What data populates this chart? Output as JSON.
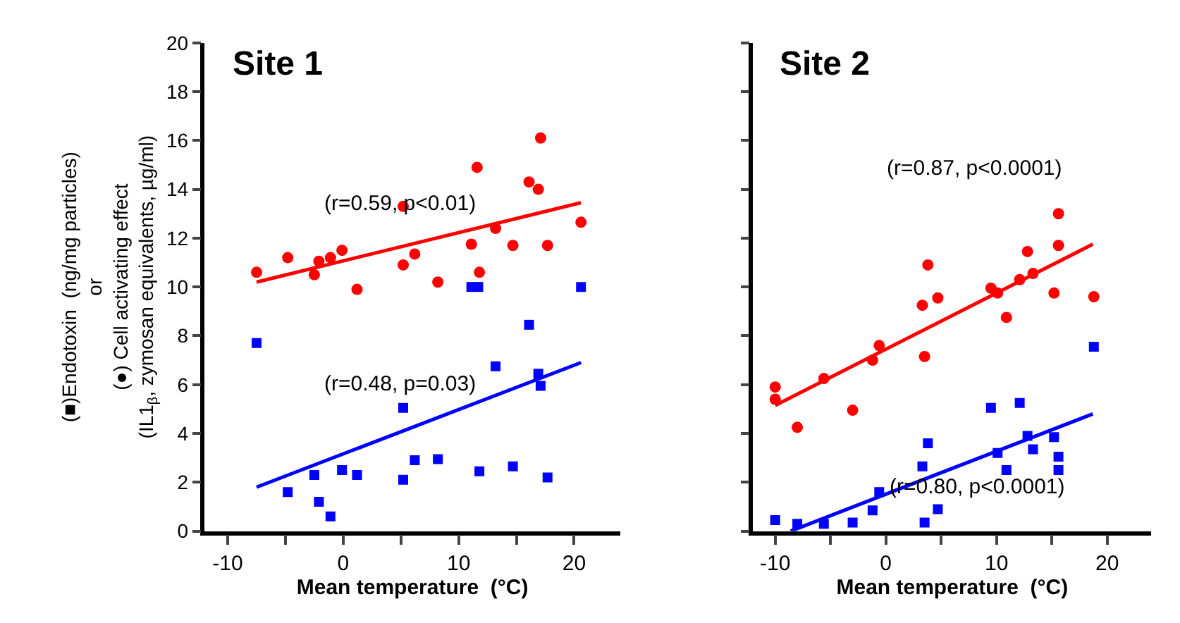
{
  "chart_data": [
    {
      "type": "scatter",
      "title": "Site 1",
      "xlabel": "Mean temperature  (°C)",
      "ylabel": "(■)Endotoxin  (ng/mg particles)\nor\n(●) Cell activating effect\n(IL1$_{β}$, zymosan equivalents, µg/ml)",
      "xlim": [
        -12,
        24
      ],
      "ylim": [
        0,
        20
      ],
      "xticks": [
        -10,
        {
          "value": -5,
          "label": null
        },
        0,
        {
          "value": 5,
          "label": null
        },
        10,
        {
          "value": 15,
          "label": null
        },
        20
      ],
      "yticks": [
        0,
        2,
        4,
        6,
        8,
        10,
        12,
        14,
        16,
        18,
        20
      ],
      "annotations": [
        "(r=0.59, p<0.01)",
        "(r=0.48, p=0.03)"
      ],
      "series": [
        {
          "marker": "circle",
          "color": "#ff0000",
          "x": [
            -7.5,
            -4.8,
            -2.5,
            -2.1,
            -1.1,
            -0.1,
            1.2,
            5.2,
            5.2,
            6.2,
            8.2,
            11.1,
            11.6,
            11.8,
            13.2,
            14.7,
            16.1,
            16.9,
            17.1,
            17.7,
            20.6
          ],
          "values": [
            10.6,
            11.2,
            10.5,
            11.05,
            11.2,
            11.5,
            9.9,
            13.3,
            10.9,
            11.35,
            10.2,
            11.75,
            14.9,
            10.6,
            12.4,
            11.7,
            14.3,
            14.0,
            16.1,
            11.7,
            12.65
          ]
        },
        {
          "marker": "square",
          "color": "#0000ff",
          "x": [
            -7.5,
            -4.8,
            -2.5,
            -2.1,
            -1.1,
            -0.1,
            1.2,
            5.2,
            5.2,
            6.2,
            8.2,
            11.1,
            11.7,
            11.8,
            13.2,
            14.7,
            16.1,
            16.9,
            17.1,
            17.7,
            20.6
          ],
          "values": [
            7.7,
            1.6,
            2.3,
            1.2,
            0.6,
            2.5,
            2.3,
            5.05,
            2.1,
            2.9,
            2.95,
            10.0,
            10.0,
            2.45,
            6.75,
            2.65,
            8.45,
            6.45,
            5.95,
            2.2,
            10.0
          ]
        },
        {
          "type": "line",
          "marker": "none",
          "color": "#ff0000",
          "x": [
            -7.5,
            20.6
          ],
          "values": [
            10.2,
            13.45
          ]
        },
        {
          "type": "line",
          "marker": "none",
          "color": "#0000ff",
          "x": [
            -7.5,
            20.6
          ],
          "values": [
            1.8,
            6.9
          ]
        }
      ]
    },
    {
      "type": "scatter",
      "title": "Site 2",
      "xlabel": "Mean temperature  (°C)",
      "tick_labels": "x",
      "xlim": [
        -12,
        24
      ],
      "ylim": [
        0,
        20
      ],
      "xticks": [
        -10,
        {
          "value": -5,
          "label": null
        },
        0,
        {
          "value": 5,
          "label": null
        },
        10,
        {
          "value": 15,
          "label": null
        },
        20
      ],
      "yticks": [
        0,
        2,
        4,
        6,
        8,
        10,
        12,
        14,
        16,
        18,
        20
      ],
      "annotations": [
        "(r=0.87, p<0.0001)",
        "(r=0.80, p<0.0001)"
      ],
      "series": [
        {
          "marker": "circle",
          "color": "#ff0000",
          "x": [
            -10,
            -10,
            -8,
            -5.6,
            -3.0,
            -1.2,
            -0.6,
            3.3,
            3.5,
            3.8,
            4.7,
            9.5,
            10.1,
            10.9,
            12.1,
            12.8,
            13.3,
            15.2,
            15.6,
            15.6,
            18.8
          ],
          "values": [
            5.9,
            5.4,
            4.25,
            6.25,
            4.95,
            7.0,
            7.6,
            9.25,
            7.15,
            10.9,
            9.55,
            9.95,
            9.75,
            8.75,
            10.3,
            11.45,
            10.55,
            9.75,
            11.7,
            13.0,
            9.6
          ]
        },
        {
          "marker": "square",
          "color": "#0000ff",
          "x": [
            -10,
            -8,
            -5.6,
            -3.0,
            -1.2,
            -0.6,
            3.3,
            3.5,
            3.8,
            4.7,
            9.5,
            10.1,
            10.9,
            12.1,
            12.8,
            13.3,
            15.2,
            15.6,
            15.6,
            18.8
          ],
          "values": [
            0.45,
            0.3,
            0.3,
            0.35,
            0.85,
            1.6,
            2.65,
            0.35,
            3.6,
            0.9,
            5.05,
            3.2,
            2.5,
            5.25,
            3.9,
            3.35,
            3.85,
            3.05,
            2.5,
            7.55
          ]
        },
        {
          "type": "line",
          "marker": "none",
          "color": "#ff0000",
          "x": [
            -10,
            18.7
          ],
          "values": [
            5.15,
            11.75
          ]
        },
        {
          "type": "line",
          "marker": "none",
          "color": "#0000ff",
          "x": [
            -8.6,
            18.7
          ],
          "values": [
            0,
            4.8
          ]
        }
      ]
    }
  ]
}
